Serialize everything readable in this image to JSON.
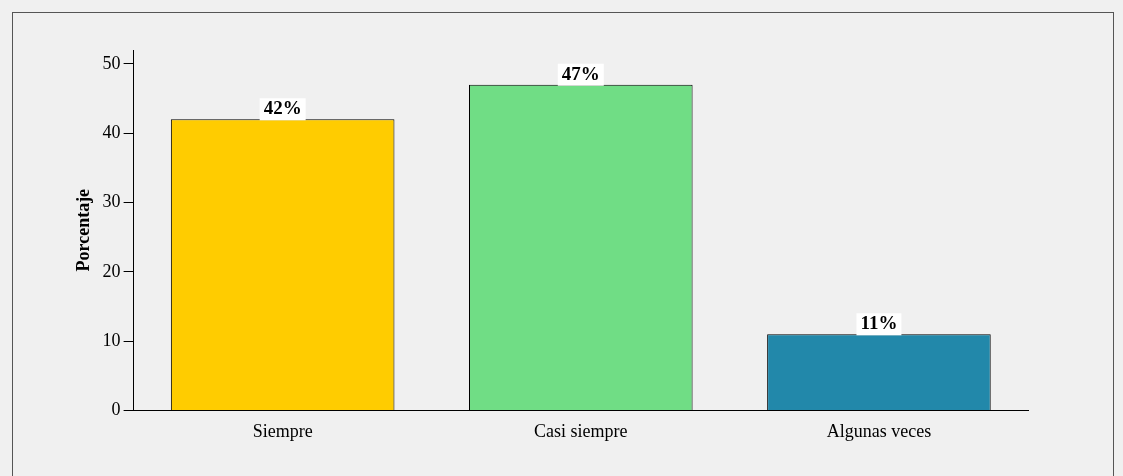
{
  "chart_data": {
    "type": "bar",
    "ylabel": "Porcentaje",
    "categories": [
      "Siempre",
      "Casi siempre",
      "Algunas veces"
    ],
    "values": [
      42,
      47,
      11
    ],
    "colors": [
      "#ffcc00",
      "#70dd85",
      "#2288aa"
    ],
    "value_labels": [
      "42%",
      "47%",
      "11%"
    ],
    "ylim": [
      0,
      52
    ],
    "yticks": [
      0,
      10,
      20,
      30,
      40,
      50
    ],
    "grid": false,
    "legend": false
  }
}
